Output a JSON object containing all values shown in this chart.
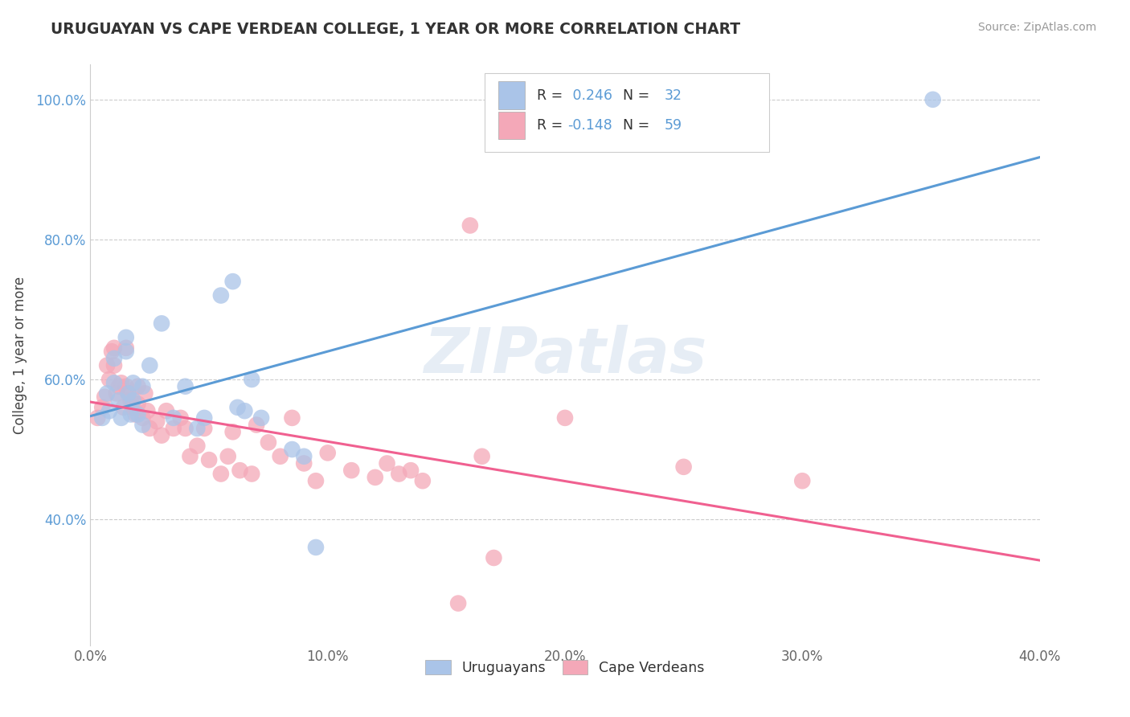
{
  "title": "URUGUAYAN VS CAPE VERDEAN COLLEGE, 1 YEAR OR MORE CORRELATION CHART",
  "source": "Source: ZipAtlas.com",
  "xlabel": "",
  "ylabel": "College, 1 year or more",
  "xlim": [
    0.0,
    0.4
  ],
  "ylim": [
    0.22,
    1.05
  ],
  "xtick_labels": [
    "0.0%",
    "10.0%",
    "20.0%",
    "30.0%",
    "40.0%"
  ],
  "xtick_vals": [
    0.0,
    0.1,
    0.2,
    0.3,
    0.4
  ],
  "ytick_labels": [
    "40.0%",
    "60.0%",
    "80.0%",
    "100.0%"
  ],
  "ytick_vals": [
    0.4,
    0.6,
    0.8,
    1.0
  ],
  "uruguayan_color": "#aac4e8",
  "cape_verdean_color": "#f4a8b8",
  "line_uruguayan_color": "#5b9bd5",
  "line_cape_verdean_color": "#f06090",
  "r_uruguayan": 0.246,
  "n_uruguayan": 32,
  "r_cape_verdean": -0.148,
  "n_cape_verdean": 59,
  "watermark": "ZIPatlas",
  "uruguayan_x": [
    0.005,
    0.007,
    0.008,
    0.01,
    0.01,
    0.012,
    0.013,
    0.015,
    0.015,
    0.016,
    0.017,
    0.018,
    0.018,
    0.02,
    0.022,
    0.022,
    0.025,
    0.03,
    0.035,
    0.04,
    0.045,
    0.048,
    0.055,
    0.06,
    0.062,
    0.065,
    0.068,
    0.072,
    0.085,
    0.09,
    0.095,
    0.355
  ],
  "uruguayan_y": [
    0.545,
    0.58,
    0.555,
    0.63,
    0.595,
    0.57,
    0.545,
    0.66,
    0.64,
    0.58,
    0.55,
    0.595,
    0.57,
    0.55,
    0.535,
    0.59,
    0.62,
    0.68,
    0.545,
    0.59,
    0.53,
    0.545,
    0.72,
    0.74,
    0.56,
    0.555,
    0.6,
    0.545,
    0.5,
    0.49,
    0.36,
    1.0
  ],
  "cape_verdean_x": [
    0.003,
    0.005,
    0.006,
    0.007,
    0.008,
    0.009,
    0.01,
    0.01,
    0.011,
    0.012,
    0.013,
    0.014,
    0.015,
    0.015,
    0.016,
    0.017,
    0.018,
    0.019,
    0.02,
    0.02,
    0.022,
    0.023,
    0.024,
    0.025,
    0.028,
    0.03,
    0.032,
    0.035,
    0.038,
    0.04,
    0.042,
    0.045,
    0.048,
    0.05,
    0.055,
    0.058,
    0.06,
    0.063,
    0.068,
    0.07,
    0.075,
    0.08,
    0.085,
    0.09,
    0.095,
    0.1,
    0.11,
    0.12,
    0.125,
    0.13,
    0.135,
    0.14,
    0.155,
    0.16,
    0.165,
    0.17,
    0.2,
    0.25,
    0.3
  ],
  "cape_verdean_y": [
    0.545,
    0.56,
    0.575,
    0.62,
    0.6,
    0.64,
    0.62,
    0.645,
    0.58,
    0.59,
    0.595,
    0.56,
    0.645,
    0.59,
    0.58,
    0.57,
    0.56,
    0.55,
    0.59,
    0.565,
    0.545,
    0.58,
    0.555,
    0.53,
    0.54,
    0.52,
    0.555,
    0.53,
    0.545,
    0.53,
    0.49,
    0.505,
    0.53,
    0.485,
    0.465,
    0.49,
    0.525,
    0.47,
    0.465,
    0.535,
    0.51,
    0.49,
    0.545,
    0.48,
    0.455,
    0.495,
    0.47,
    0.46,
    0.48,
    0.465,
    0.47,
    0.455,
    0.28,
    0.82,
    0.49,
    0.345,
    0.545,
    0.475,
    0.455
  ],
  "legend_label_uru": "Uruguayans",
  "legend_label_cape": "Cape Verdeans"
}
